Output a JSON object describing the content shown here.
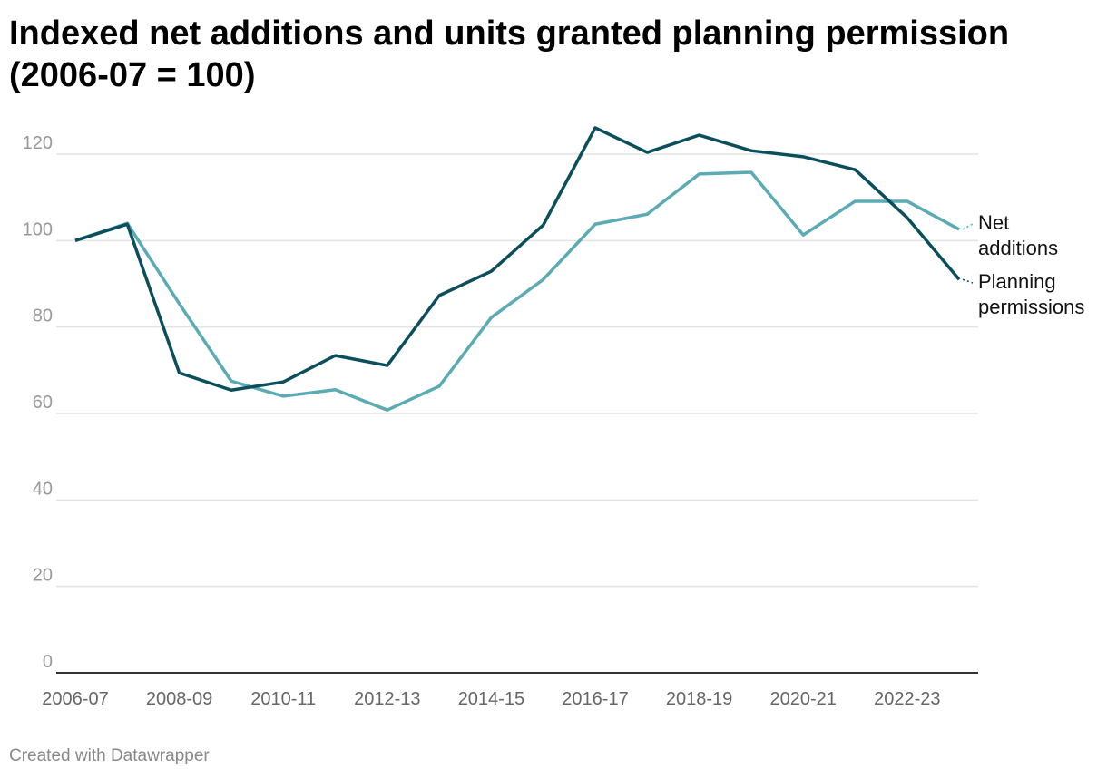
{
  "title": "Indexed net additions and units granted planning permission (2006-07 = 100)",
  "footer": "Created with Datawrapper",
  "chart_data": {
    "type": "line",
    "title": "Indexed net additions and units granted planning permission (2006-07 = 100)",
    "xlabel": "",
    "ylabel": "",
    "ylim": [
      0,
      120
    ],
    "yticks": [
      0,
      20,
      40,
      60,
      80,
      100,
      120
    ],
    "x": [
      "2006-07",
      "2007-08",
      "2008-09",
      "2009-10",
      "2010-11",
      "2011-12",
      "2012-13",
      "2013-14",
      "2014-15",
      "2015-16",
      "2016-17",
      "2017-18",
      "2018-19",
      "2019-20",
      "2020-21",
      "2021-22",
      "2022-23",
      "2023-24"
    ],
    "xtick_labels": [
      "2006-07",
      "2008-09",
      "2010-11",
      "2012-13",
      "2014-15",
      "2016-17",
      "2018-19",
      "2020-21",
      "2022-23"
    ],
    "grid": true,
    "legend": "direct labels at right end of lines",
    "series": [
      {
        "name": "Net additions",
        "label_lines": [
          "Net",
          "additions"
        ],
        "color": "#5aabb3",
        "values": [
          100,
          104,
          85.4,
          67.5,
          64,
          65.5,
          60.8,
          66.3,
          82.2,
          91,
          103.8,
          106.1,
          115.4,
          115.8,
          101.3,
          109.1,
          109.1,
          102.6
        ]
      },
      {
        "name": "Planning permissions",
        "label_lines": [
          "Planning",
          "permissions"
        ],
        "color": "#0a4f5b",
        "values": [
          100,
          103.8,
          69.4,
          65.4,
          67.3,
          73.4,
          71.1,
          87.3,
          92.9,
          103.6,
          126.1,
          120.4,
          124.4,
          120.8,
          119.4,
          116.4,
          105.3,
          91
        ]
      }
    ]
  }
}
